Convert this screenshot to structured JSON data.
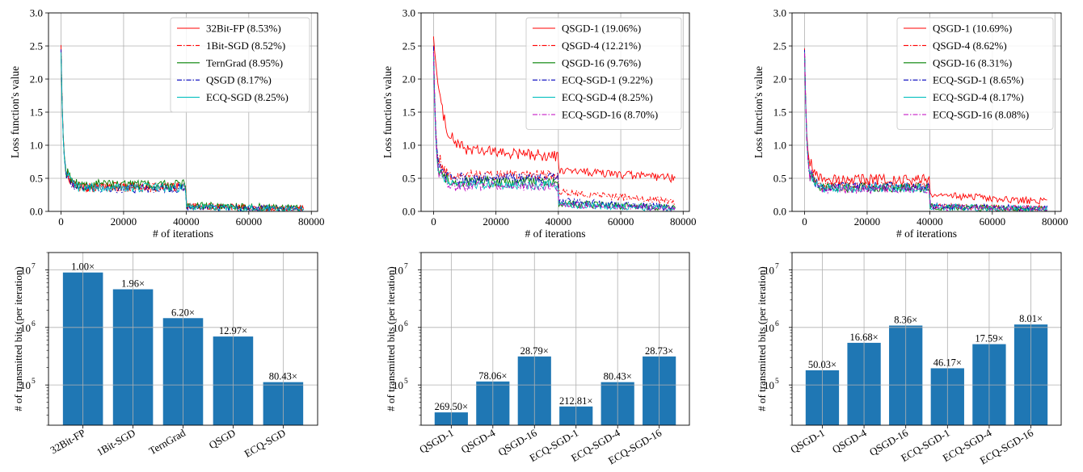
{
  "chart_data": [
    {
      "type": "line",
      "panel": "top-left",
      "xlabel": "# of iterations",
      "ylabel": "Loss function's value",
      "xlim": [
        -4000,
        82000
      ],
      "ylim": [
        0,
        3.0
      ],
      "xticks": [
        0,
        20000,
        40000,
        60000,
        80000
      ],
      "yticks": [
        0.0,
        0.5,
        1.0,
        1.5,
        2.0,
        2.5,
        3.0
      ],
      "legend_position": "top-right",
      "series": [
        {
          "name": "32Bit-FP (8.53%)",
          "color": "#ff0000",
          "dash": "solid",
          "start": 2.5,
          "plateau": 0.37,
          "after": 0.08,
          "end": 0.04,
          "noise": 0.07
        },
        {
          "name": "1Bit-SGD (8.52%)",
          "color": "#ff0000",
          "dash": "dashdot",
          "start": 2.45,
          "plateau": 0.36,
          "after": 0.08,
          "end": 0.04,
          "noise": 0.07
        },
        {
          "name": "TernGrad (8.95%)",
          "color": "#008000",
          "dash": "solid",
          "start": 2.4,
          "plateau": 0.4,
          "after": 0.09,
          "end": 0.05,
          "noise": 0.08
        },
        {
          "name": "QSGD (8.17%)",
          "color": "#0000bf",
          "dash": "dashdot",
          "start": 2.45,
          "plateau": 0.35,
          "after": 0.07,
          "end": 0.03,
          "noise": 0.07
        },
        {
          "name": "ECQ-SGD (8.25%)",
          "color": "#00bfbf",
          "dash": "solid",
          "start": 2.4,
          "plateau": 0.36,
          "after": 0.07,
          "end": 0.03,
          "noise": 0.07
        }
      ]
    },
    {
      "type": "line",
      "panel": "top-middle",
      "xlabel": "# of iterations",
      "ylabel": "Loss function's value",
      "xlim": [
        -4000,
        82000
      ],
      "ylim": [
        0,
        3.0
      ],
      "xticks": [
        0,
        20000,
        40000,
        60000,
        80000
      ],
      "yticks": [
        0.0,
        0.5,
        1.0,
        1.5,
        2.0,
        2.5,
        3.0
      ],
      "legend_position": "top-right",
      "series": [
        {
          "name": "QSGD-1 (19.06%)",
          "color": "#ff0000",
          "dash": "solid",
          "start": 2.65,
          "plateau": 0.95,
          "after": 0.62,
          "end": 0.5,
          "noise": 0.09,
          "slow": true
        },
        {
          "name": "QSGD-4 (12.21%)",
          "color": "#ff0000",
          "dash": "dashdot",
          "start": 2.5,
          "plateau": 0.55,
          "after": 0.3,
          "end": 0.15,
          "noise": 0.08
        },
        {
          "name": "QSGD-16 (9.76%)",
          "color": "#008000",
          "dash": "solid",
          "start": 2.4,
          "plateau": 0.45,
          "after": 0.12,
          "end": 0.05,
          "noise": 0.08
        },
        {
          "name": "ECQ-SGD-1 (9.22%)",
          "color": "#0000bf",
          "dash": "dashdot",
          "start": 2.5,
          "plateau": 0.5,
          "after": 0.15,
          "end": 0.06,
          "noise": 0.08
        },
        {
          "name": "ECQ-SGD-4 (8.25%)",
          "color": "#00bfbf",
          "dash": "solid",
          "start": 2.4,
          "plateau": 0.4,
          "after": 0.1,
          "end": 0.04,
          "noise": 0.07
        },
        {
          "name": "ECQ-SGD-16 (8.70%)",
          "color": "#bf00bf",
          "dash": "dashdot",
          "start": 2.4,
          "plateau": 0.38,
          "after": 0.1,
          "end": 0.04,
          "noise": 0.07
        }
      ]
    },
    {
      "type": "line",
      "panel": "top-right",
      "xlabel": "# of iterations",
      "ylabel": "Loss function's value",
      "xlim": [
        -4000,
        82000
      ],
      "ylim": [
        0,
        3.0
      ],
      "xticks": [
        0,
        20000,
        40000,
        60000,
        80000
      ],
      "yticks": [
        0.0,
        0.5,
        1.0,
        1.5,
        2.0,
        2.5,
        3.0
      ],
      "legend_position": "top-right",
      "series": [
        {
          "name": "QSGD-1 (10.69%)",
          "color": "#ff0000",
          "dash": "solid",
          "start": 2.45,
          "plateau": 0.48,
          "after": 0.25,
          "end": 0.15,
          "noise": 0.08
        },
        {
          "name": "QSGD-4 (8.62%)",
          "color": "#ff0000",
          "dash": "dashdot",
          "start": 2.4,
          "plateau": 0.38,
          "after": 0.08,
          "end": 0.04,
          "noise": 0.07
        },
        {
          "name": "QSGD-16 (8.31%)",
          "color": "#008000",
          "dash": "solid",
          "start": 2.4,
          "plateau": 0.36,
          "after": 0.07,
          "end": 0.03,
          "noise": 0.07
        },
        {
          "name": "ECQ-SGD-1 (8.65%)",
          "color": "#0000bf",
          "dash": "dashdot",
          "start": 2.45,
          "plateau": 0.37,
          "after": 0.08,
          "end": 0.04,
          "noise": 0.07
        },
        {
          "name": "ECQ-SGD-4 (8.17%)",
          "color": "#00bfbf",
          "dash": "solid",
          "start": 2.4,
          "plateau": 0.35,
          "after": 0.07,
          "end": 0.03,
          "noise": 0.07
        },
        {
          "name": "ECQ-SGD-16 (8.08%)",
          "color": "#bf00bf",
          "dash": "dashdot",
          "start": 2.4,
          "plateau": 0.34,
          "after": 0.07,
          "end": 0.03,
          "noise": 0.07
        }
      ]
    },
    {
      "type": "bar",
      "panel": "bottom-left",
      "ylabel": "# of transmitted bits (per iteration)",
      "yscale": "log",
      "ylim": [
        20000,
        20000000
      ],
      "yticks": [
        {
          "value": 100000,
          "base": "10",
          "exp": "5"
        },
        {
          "value": 1000000,
          "base": "10",
          "exp": "6"
        },
        {
          "value": 10000000,
          "base": "10",
          "exp": "7"
        }
      ],
      "color": "#1f77b4",
      "categories": [
        "32Bit-FP",
        "1Bit-SGD",
        "TernGrad",
        "QSGD",
        "ECQ-SGD"
      ],
      "values": [
        9000000,
        4600000,
        1450000,
        695000,
        112000
      ],
      "labels": [
        "1.00×",
        "1.96×",
        "6.20×",
        "12.97×",
        "80.43×"
      ]
    },
    {
      "type": "bar",
      "panel": "bottom-middle",
      "ylabel": "# of transmitted bits (per iteration)",
      "yscale": "log",
      "ylim": [
        20000,
        20000000
      ],
      "yticks": [
        {
          "value": 100000,
          "base": "10",
          "exp": "5"
        },
        {
          "value": 1000000,
          "base": "10",
          "exp": "6"
        },
        {
          "value": 10000000,
          "base": "10",
          "exp": "7"
        }
      ],
      "color": "#1f77b4",
      "categories": [
        "QSGD-1",
        "QSGD-4",
        "QSGD-16",
        "ECQ-SGD-1",
        "ECQ-SGD-4",
        "ECQ-SGD-16"
      ],
      "values": [
        33400,
        115000,
        313000,
        42300,
        112000,
        313000
      ],
      "labels": [
        "269.50×",
        "78.06×",
        "28.79×",
        "212.81×",
        "80.43×",
        "28.73×"
      ]
    },
    {
      "type": "bar",
      "panel": "bottom-right",
      "ylabel": "# of transmitted bits (per iteration)",
      "yscale": "log",
      "ylim": [
        20000,
        20000000
      ],
      "yticks": [
        {
          "value": 100000,
          "base": "10",
          "exp": "5"
        },
        {
          "value": 1000000,
          "base": "10",
          "exp": "6"
        },
        {
          "value": 10000000,
          "base": "10",
          "exp": "7"
        }
      ],
      "color": "#1f77b4",
      "categories": [
        "QSGD-1",
        "QSGD-4",
        "QSGD-16",
        "ECQ-SGD-1",
        "ECQ-SGD-4",
        "ECQ-SGD-16"
      ],
      "values": [
        180000,
        540000,
        1077000,
        195000,
        512000,
        1124000
      ],
      "labels": [
        "50.03×",
        "16.68×",
        "8.36×",
        "46.17×",
        "17.59×",
        "8.01×"
      ]
    }
  ]
}
